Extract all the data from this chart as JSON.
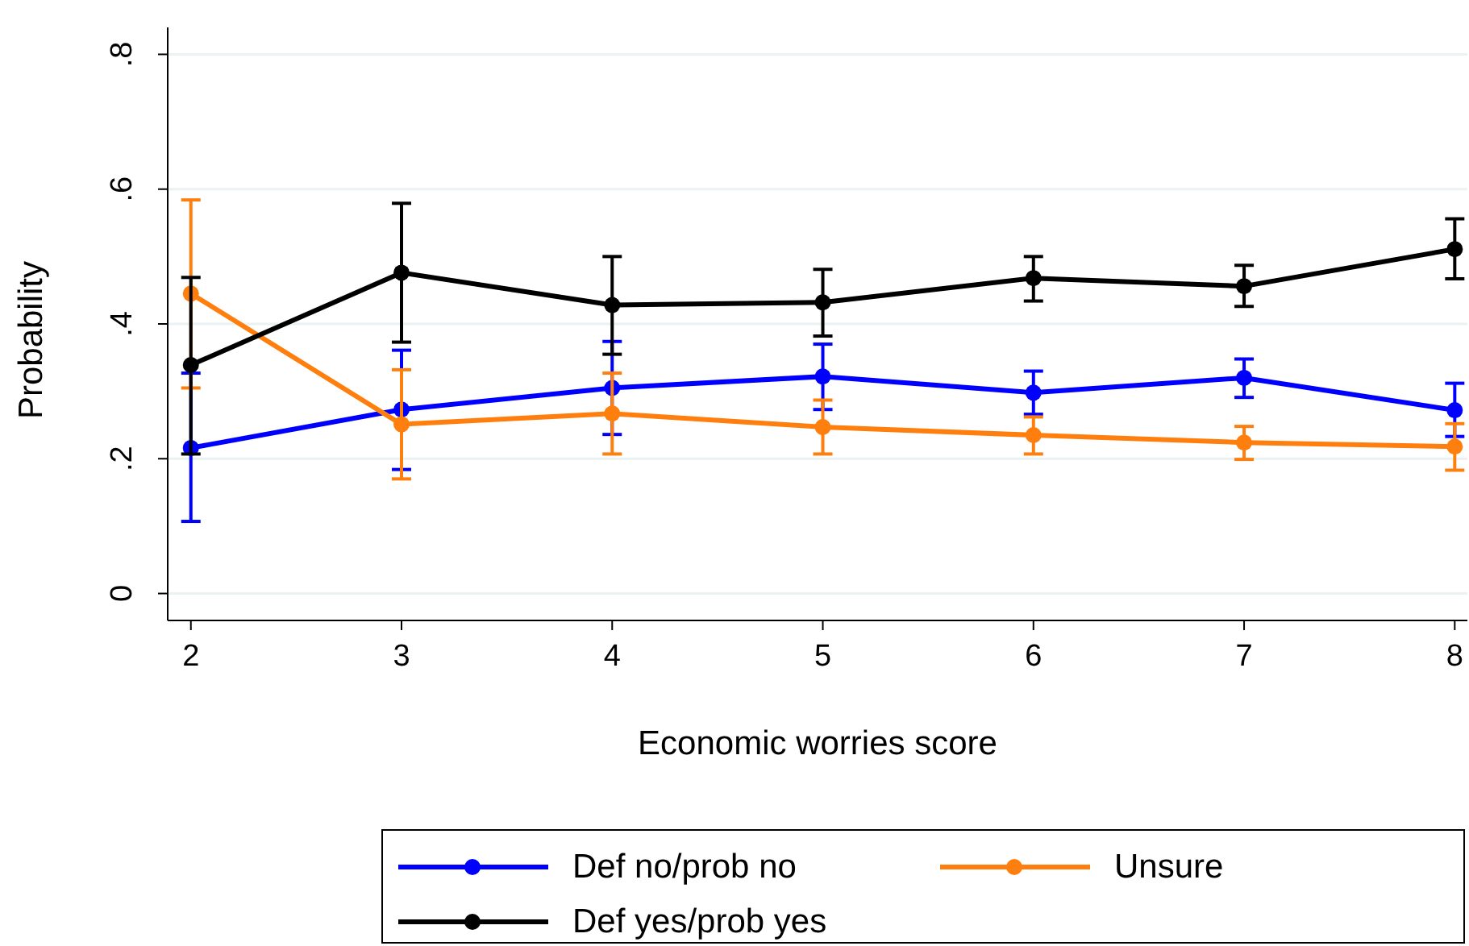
{
  "chart_data": {
    "type": "line",
    "xlabel": "Economic worries score",
    "ylabel": "Probability",
    "x": [
      2,
      3,
      4,
      5,
      6,
      7,
      8
    ],
    "xlim": [
      1.89,
      8.06
    ],
    "xticks": [
      2,
      3,
      4,
      5,
      6,
      7,
      8
    ],
    "ylim": [
      -0.04,
      0.84
    ],
    "yticks": [
      {
        "value": 0,
        "label": "0"
      },
      {
        "value": 0.2,
        "label": ".2"
      },
      {
        "value": 0.4,
        "label": ".4"
      },
      {
        "value": 0.6,
        "label": ".6"
      },
      {
        "value": 0.8,
        "label": ".8"
      }
    ],
    "grid": "y",
    "legend": "bottom",
    "marker": "circle",
    "line_style": "solid",
    "series": [
      {
        "name": "Def no/prob no",
        "color": "#0000ff",
        "values": [
          0.216,
          0.273,
          0.305,
          0.322,
          0.298,
          0.32,
          0.272
        ],
        "errors": [
          [
            0.107,
            0.327
          ],
          [
            0.184,
            0.361
          ],
          [
            0.236,
            0.374
          ],
          [
            0.273,
            0.37
          ],
          [
            0.266,
            0.33
          ],
          [
            0.291,
            0.348
          ],
          [
            0.233,
            0.312
          ]
        ]
      },
      {
        "name": "Unsure",
        "color": "#ff7f0e",
        "values": [
          0.445,
          0.251,
          0.267,
          0.247,
          0.235,
          0.224,
          0.218
        ],
        "errors": [
          [
            0.305,
            0.584
          ],
          [
            0.17,
            0.332
          ],
          [
            0.207,
            0.327
          ],
          [
            0.207,
            0.287
          ],
          [
            0.207,
            0.262
          ],
          [
            0.199,
            0.248
          ],
          [
            0.183,
            0.252
          ]
        ]
      },
      {
        "name": "Def yes/prob yes",
        "color": "#000000",
        "values": [
          0.339,
          0.476,
          0.428,
          0.432,
          0.468,
          0.456,
          0.511
        ],
        "errors": [
          [
            0.207,
            0.469
          ],
          [
            0.373,
            0.579
          ],
          [
            0.355,
            0.5
          ],
          [
            0.382,
            0.481
          ],
          [
            0.434,
            0.5
          ],
          [
            0.426,
            0.487
          ],
          [
            0.467,
            0.556
          ]
        ]
      }
    ]
  }
}
